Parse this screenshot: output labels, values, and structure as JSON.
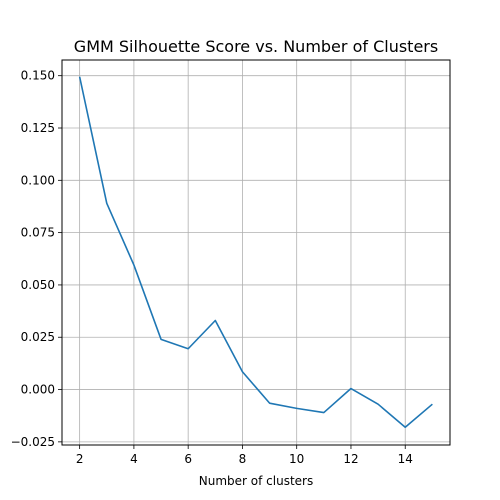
{
  "chart_data": {
    "type": "line",
    "title": "GMM Silhouette Score vs. Number of Clusters",
    "xlabel": "Number of clusters",
    "ylabel": "",
    "grid": true,
    "xlim": [
      1.35,
      15.65
    ],
    "ylim": [
      -0.0265,
      0.1575
    ],
    "xticks": [
      2,
      4,
      6,
      8,
      10,
      12,
      14
    ],
    "yticks": [
      -0.025,
      0.0,
      0.025,
      0.05,
      0.075,
      0.1,
      0.125,
      0.15
    ],
    "ytick_labels": [
      "−0.025",
      "0.000",
      "0.025",
      "0.050",
      "0.075",
      "0.100",
      "0.125",
      "0.150"
    ],
    "series": [
      {
        "name": "",
        "color": "#1f77b4",
        "x": [
          2,
          3,
          4,
          5,
          6,
          7,
          8,
          9,
          10,
          11,
          12,
          13,
          14,
          15
        ],
        "y": [
          0.1495,
          0.089,
          0.0595,
          0.024,
          0.0195,
          0.033,
          0.0085,
          -0.0065,
          -0.009,
          -0.011,
          0.0005,
          -0.007,
          -0.018,
          -0.007
        ]
      }
    ]
  }
}
